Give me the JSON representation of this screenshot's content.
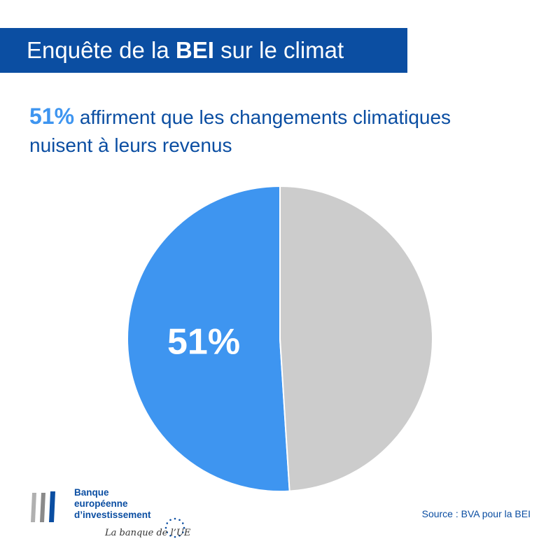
{
  "header": {
    "title_pre": "Enquête de la",
    "title_bold": "BEI",
    "title_post": "sur le climat"
  },
  "headline": {
    "highlight": "51%",
    "line1": " affirment que les changements climatiques",
    "line2": "nuisent à leurs revenus"
  },
  "chart_data": {
    "type": "pie",
    "title": "",
    "slices": [
      {
        "label": "",
        "value": 51,
        "color": "#3e95f0",
        "data_label": "51%"
      },
      {
        "label": "",
        "value": 49,
        "color": "#cccccc",
        "data_label": ""
      }
    ]
  },
  "footer": {
    "logo_lines": [
      "Banque",
      "européenne",
      "d’investissement"
    ],
    "tagline": "La banque de l’UE",
    "source": "Source : BVA pour la BEI"
  },
  "colors": {
    "brand_blue": "#0b4ea2",
    "accent_blue": "#3e95f0",
    "grey": "#cccccc"
  }
}
